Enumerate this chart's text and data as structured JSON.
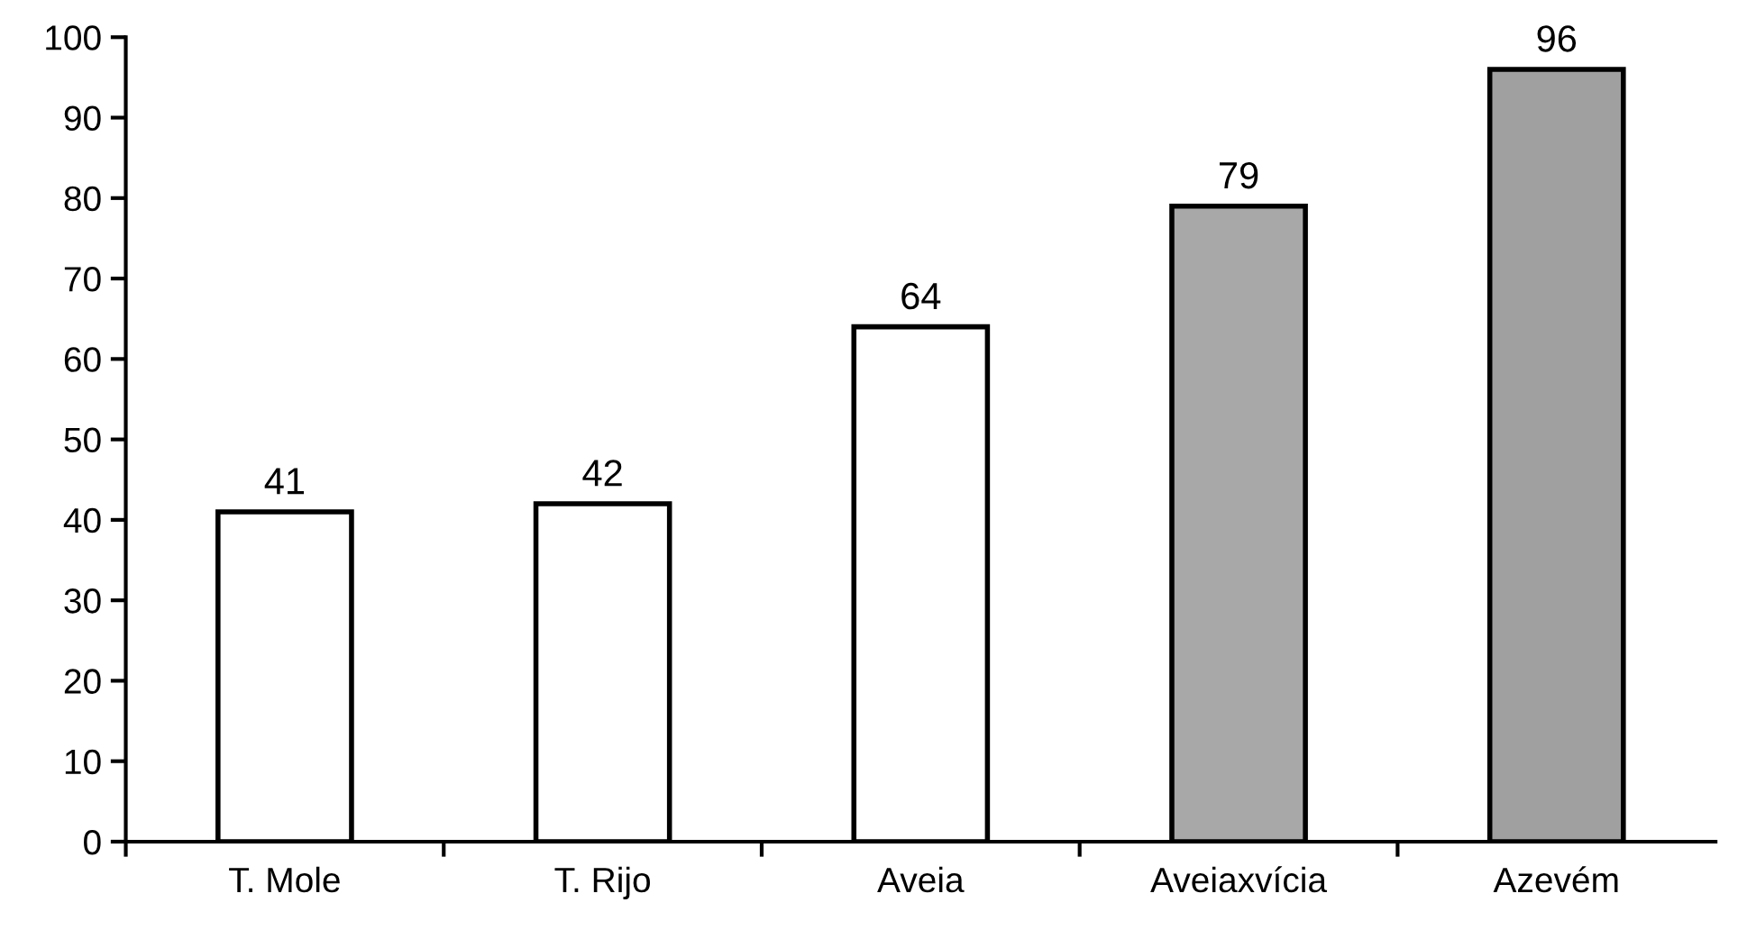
{
  "chart_data": {
    "type": "bar",
    "categories": [
      "T. Mole",
      "T. Rijo",
      "Aveia",
      "Aveiaxvícia",
      "Azevém"
    ],
    "values": [
      41,
      42,
      64,
      79,
      96
    ],
    "colors": [
      "#ffffff",
      "#ffffff",
      "#ffffff",
      "#a8a8a8",
      "#a0a0a0"
    ],
    "ylim": [
      0,
      100
    ],
    "yticks": [
      0,
      10,
      20,
      30,
      40,
      50,
      60,
      70,
      80,
      90,
      100
    ],
    "grid": false,
    "legend": false,
    "data_labels": true
  }
}
